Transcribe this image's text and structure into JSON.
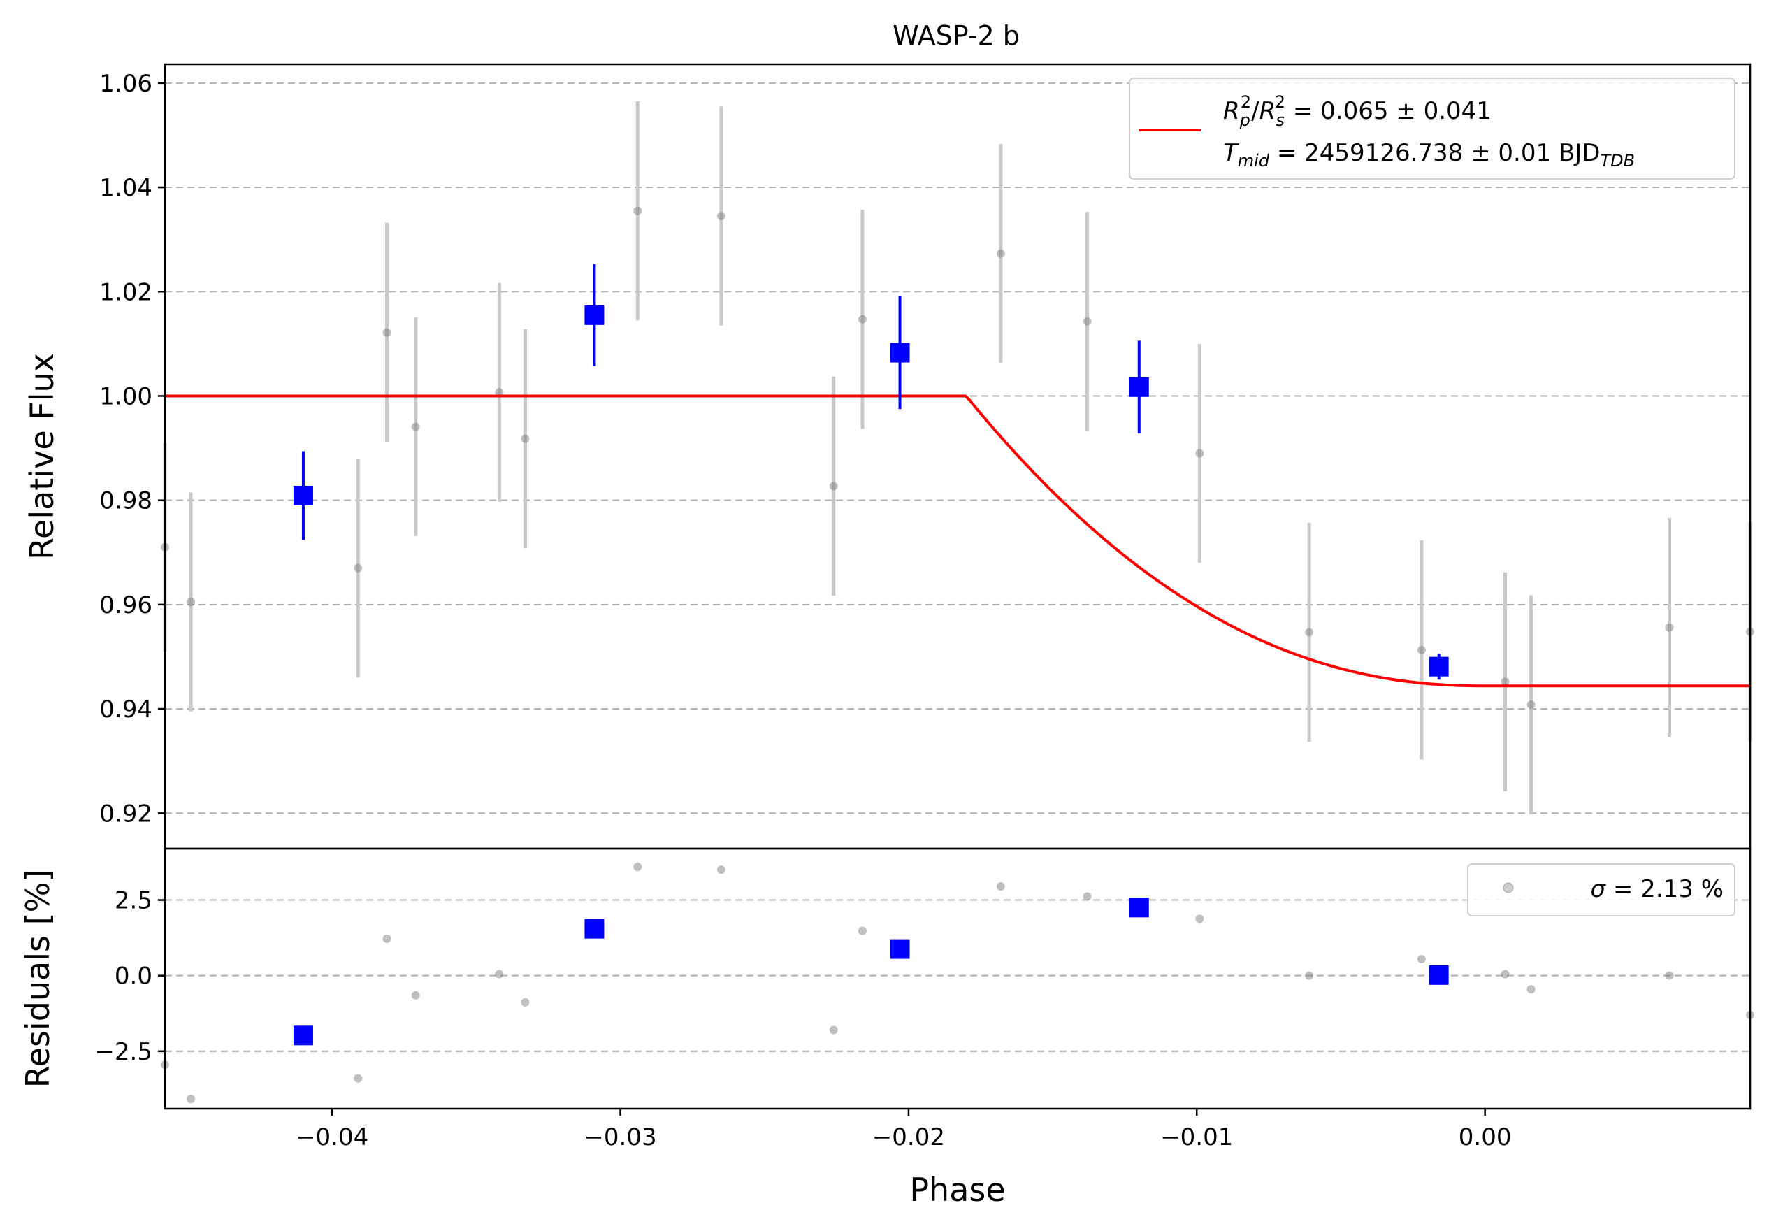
{
  "chart_data": [
    {
      "type": "scatter",
      "title": "WASP-2 b",
      "xlabel": "",
      "ylabel": "Relative Flux",
      "xlim": [
        -0.0458,
        0.0092
      ],
      "ylim": [
        0.9132,
        1.0636
      ],
      "yticks": [
        "0.92",
        "0.94",
        "0.96",
        "0.98",
        "1.00",
        "1.02",
        "1.04",
        "1.06"
      ],
      "grid": "horizontal dashed",
      "legend_position": "top-right",
      "legend": {
        "line1_prefix_sym": "R",
        "line1_sub_p": "p",
        "line1_sup": "2",
        "line1_sub_s": "s",
        "line1_value": " = 0.065 ± 0.041",
        "line2_sym": "T",
        "line2_sub": "mid",
        "line2_value": " = 2459126.738 ± 0.01 BJD",
        "line2_unit_sub": "TDB"
      },
      "colors": {
        "raw": "#808080",
        "binned": "#0000ff",
        "model": "#ff0000",
        "errorbar_raw": "#c8c8c8"
      },
      "series": [
        {
          "points": [
            {
              "x": -0.0458,
              "y": 0.971,
              "err": 0.02
            },
            {
              "x": -0.0449,
              "y": 0.9605,
              "err": 0.021
            },
            {
              "x": -0.0391,
              "y": 0.967,
              "err": 0.021
            },
            {
              "x": -0.0381,
              "y": 1.0122,
              "err": 0.021
            },
            {
              "x": -0.0371,
              "y": 0.9941,
              "err": 0.021
            },
            {
              "x": -0.0342,
              "y": 1.0007,
              "err": 0.021
            },
            {
              "x": -0.0333,
              "y": 0.9918,
              "err": 0.021
            },
            {
              "x": -0.0294,
              "y": 1.0355,
              "err": 0.021
            },
            {
              "x": -0.0265,
              "y": 1.0345,
              "err": 0.021
            },
            {
              "x": -0.0226,
              "y": 0.9827,
              "err": 0.021
            },
            {
              "x": -0.0216,
              "y": 1.0147,
              "err": 0.021
            },
            {
              "x": -0.0168,
              "y": 1.0273,
              "err": 0.021
            },
            {
              "x": -0.0138,
              "y": 1.0143,
              "err": 0.021
            },
            {
              "x": -0.0099,
              "y": 0.989,
              "err": 0.021
            },
            {
              "x": -0.0061,
              "y": 0.9547,
              "err": 0.021
            },
            {
              "x": -0.0022,
              "y": 0.9513,
              "err": 0.021
            },
            {
              "x": 0.0007,
              "y": 0.9452,
              "err": 0.021
            },
            {
              "x": 0.0016,
              "y": 0.9408,
              "err": 0.021
            },
            {
              "x": 0.0064,
              "y": 0.9556,
              "err": 0.021
            },
            {
              "x": 0.0092,
              "y": 0.9548,
              "err": 0.021
            }
          ]
        },
        {
          "points": [
            {
              "x": -0.041,
              "y": 0.9809,
              "err": 0.0085
            },
            {
              "x": -0.0309,
              "y": 1.0155,
              "err": 0.0098
            },
            {
              "x": -0.0203,
              "y": 1.0083,
              "err": 0.0108
            },
            {
              "x": -0.012,
              "y": 1.0017,
              "err": 0.0089
            },
            {
              "x": -0.0016,
              "y": 0.9481,
              "err": 0.0025
            }
          ]
        },
        {
          "model": {
            "baseline": 1.0,
            "min": 0.9444,
            "t_mid": 0.0,
            "ingress_start": -0.018,
            "curvature": 8e-05
          }
        }
      ]
    },
    {
      "type": "scatter",
      "xlabel": "Phase",
      "ylabel": "Residuals [%]",
      "xlim": [
        -0.0458,
        0.0092
      ],
      "ylim": [
        -4.4,
        4.2
      ],
      "yticks": [
        "−2.5",
        "0.0",
        "2.5"
      ],
      "xticks": [
        "−0.04",
        "−0.03",
        "−0.02",
        "−0.01",
        "0.00"
      ],
      "legend_position": "top-right",
      "legend": {
        "sigma_sym": "σ",
        "sigma_text": " = 2.13 %"
      },
      "series": [
        {
          "points": [
            {
              "x": -0.0458,
              "y": -2.95
            },
            {
              "x": -0.0449,
              "y": -4.08
            },
            {
              "x": -0.0391,
              "y": -3.4
            },
            {
              "x": -0.0381,
              "y": 1.22
            },
            {
              "x": -0.0371,
              "y": -0.65
            },
            {
              "x": -0.0342,
              "y": 0.05
            },
            {
              "x": -0.0333,
              "y": -0.88
            },
            {
              "x": -0.0294,
              "y": 3.6
            },
            {
              "x": -0.0265,
              "y": 3.5
            },
            {
              "x": -0.0226,
              "y": -1.8
            },
            {
              "x": -0.0216,
              "y": 1.48
            },
            {
              "x": -0.0168,
              "y": 2.95
            },
            {
              "x": -0.0138,
              "y": 2.62
            },
            {
              "x": -0.0099,
              "y": 1.88
            },
            {
              "x": -0.0061,
              "y": 0.0
            },
            {
              "x": -0.0022,
              "y": 0.55
            },
            {
              "x": 0.0007,
              "y": 0.05
            },
            {
              "x": 0.0016,
              "y": -0.45
            },
            {
              "x": 0.0064,
              "y": 0.0
            },
            {
              "x": 0.0092,
              "y": -1.3
            }
          ]
        },
        {
          "points": [
            {
              "x": -0.041,
              "y": -1.98
            },
            {
              "x": -0.0309,
              "y": 1.55
            },
            {
              "x": -0.0203,
              "y": 0.88
            },
            {
              "x": -0.012,
              "y": 2.25
            },
            {
              "x": -0.0016,
              "y": 0.02
            }
          ]
        }
      ]
    }
  ]
}
